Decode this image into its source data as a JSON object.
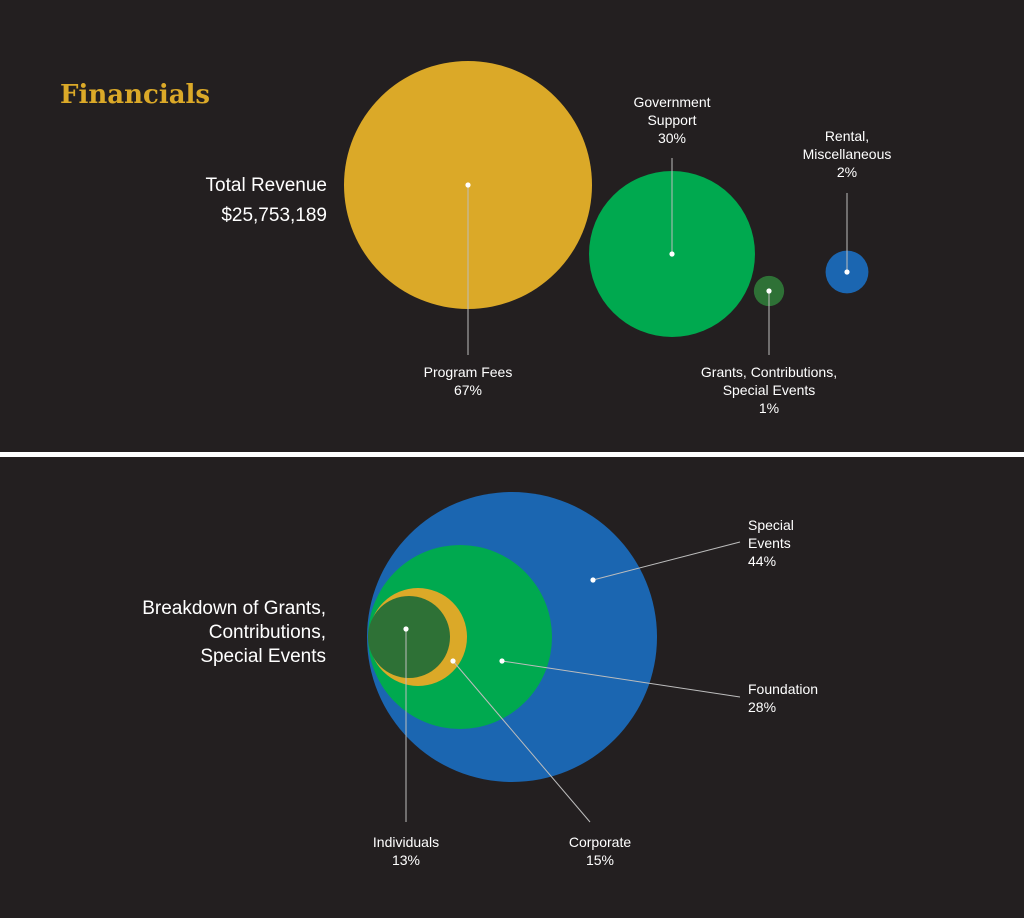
{
  "page": {
    "title": "Financials",
    "revenue": {
      "label": "Total Revenue",
      "amount": "$25,753,189"
    },
    "breakdown": {
      "lines": [
        "Breakdown of Grants,",
        "Contributions,",
        "Special Events"
      ]
    }
  },
  "colors": {
    "background": "#231f20",
    "title": "#dba928",
    "gold": "#dba928",
    "green": "#00a94f",
    "dark_green": "#2e7136",
    "blue": "#1b66b1",
    "leader": "#bdbdbd"
  },
  "chart_data": [
    {
      "type": "bubble",
      "title": "Total Revenue",
      "total": "$25,753,189",
      "series": [
        {
          "name": "Program Fees",
          "label_lines": [
            "Program Fees"
          ],
          "value": 67,
          "value_label": "67%",
          "color": "#dba928"
        },
        {
          "name": "Government Support",
          "label_lines": [
            "Government",
            "Support"
          ],
          "value": 30,
          "value_label": "30%",
          "color": "#00a94f"
        },
        {
          "name": "Grants, Contributions, Special Events",
          "label_lines": [
            "Grants, Contributions,",
            "Special Events"
          ],
          "value": 1,
          "value_label": "1%",
          "color": "#2e7136"
        },
        {
          "name": "Rental, Miscellaneous",
          "label_lines": [
            "Rental,",
            "Miscellaneous"
          ],
          "value": 2,
          "value_label": "2%",
          "color": "#1b66b1"
        }
      ]
    },
    {
      "type": "nested-bubble",
      "title": "Breakdown of Grants, Contributions, Special Events",
      "series": [
        {
          "name": "Special Events",
          "label_lines": [
            "Special",
            "Events"
          ],
          "value": 44,
          "value_label": "44%",
          "color": "#1b66b1"
        },
        {
          "name": "Foundation",
          "label_lines": [
            "Foundation"
          ],
          "value": 28,
          "value_label": "28%",
          "color": "#00a94f"
        },
        {
          "name": "Corporate",
          "label_lines": [
            "Corporate"
          ],
          "value": 15,
          "value_label": "15%",
          "color": "#dba928"
        },
        {
          "name": "Individuals",
          "label_lines": [
            "Individuals"
          ],
          "value": 13,
          "value_label": "13%",
          "color": "#2e7136"
        }
      ]
    }
  ]
}
